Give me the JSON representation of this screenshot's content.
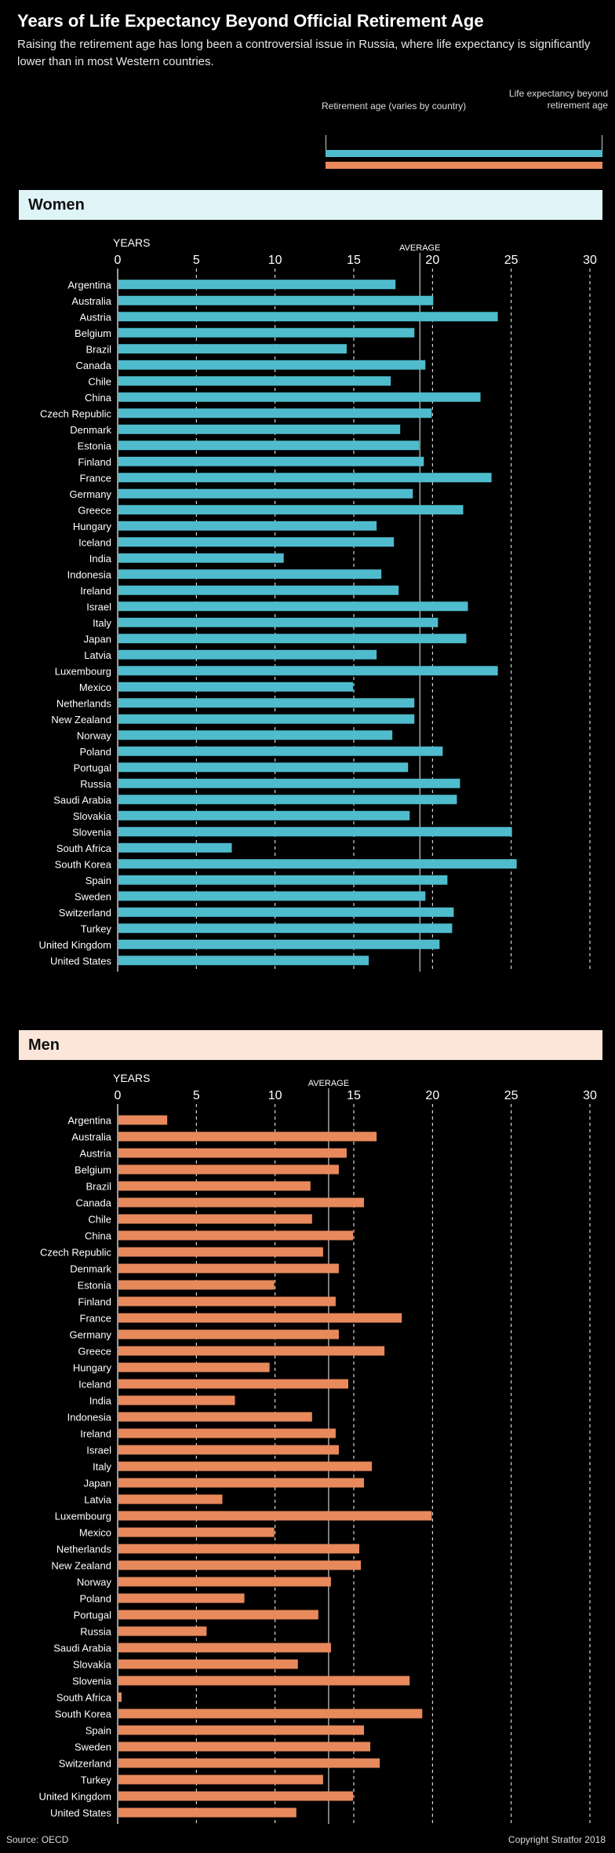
{
  "header": {
    "title": "Years of Life Expectancy Beyond Official Retirement Age",
    "subtitle": "Raising the retirement age has long been a controversial issue in Russia, where life expectancy is significantly lower than in most Western countries."
  },
  "legend": {
    "left_label": "Retirement age (varies by country)",
    "right_label": "Life expectancy beyond retirement age"
  },
  "colors": {
    "women": "#4fbccd",
    "men": "#e8895c",
    "women_header_bg": "#dff4f7",
    "men_header_bg": "#fbe6d9"
  },
  "footer": {
    "source": "Source: OECD",
    "copyright": "Copyright Stratfor 2018"
  },
  "chart_data": [
    {
      "type": "bar",
      "orientation": "horizontal",
      "title": "Women",
      "xlabel": "YEARS",
      "xlim": [
        0,
        30
      ],
      "xticks": [
        0,
        5,
        10,
        15,
        20,
        25,
        30
      ],
      "grid": true,
      "average": 19.2,
      "average_label": "AVERAGE",
      "categories": [
        "Argentina",
        "Australia",
        "Austria",
        "Belgium",
        "Brazil",
        "Canada",
        "Chile",
        "China",
        "Czech Republic",
        "Denmark",
        "Estonia",
        "Finland",
        "France",
        "Germany",
        "Greece",
        "Hungary",
        "Iceland",
        "India",
        "Indonesia",
        "Ireland",
        "Israel",
        "Italy",
        "Japan",
        "Latvia",
        "Luxembourg",
        "Mexico",
        "Netherlands",
        "New Zealand",
        "Norway",
        "Poland",
        "Portugal",
        "Russia",
        "Saudi Arabia",
        "Slovakia",
        "Slovenia",
        "South Africa",
        "South Korea",
        "Spain",
        "Sweden",
        "Switzerland",
        "Turkey",
        "United Kingdom",
        "United States"
      ],
      "values": [
        17.6,
        20.0,
        24.1,
        18.8,
        14.5,
        19.5,
        17.3,
        23.0,
        19.9,
        17.9,
        19.1,
        19.4,
        23.7,
        18.7,
        21.9,
        16.4,
        17.5,
        10.5,
        16.7,
        17.8,
        22.2,
        20.3,
        22.1,
        16.4,
        24.1,
        14.9,
        18.8,
        18.8,
        17.4,
        20.6,
        18.4,
        21.7,
        21.5,
        18.5,
        25.0,
        7.2,
        25.3,
        20.9,
        19.5,
        21.3,
        21.2,
        20.4,
        15.9
      ]
    },
    {
      "type": "bar",
      "orientation": "horizontal",
      "title": "Men",
      "xlabel": "YEARS",
      "xlim": [
        0,
        30
      ],
      "xticks": [
        0,
        5,
        10,
        15,
        20,
        25,
        30
      ],
      "grid": true,
      "average": 13.4,
      "average_label": "AVERAGE",
      "categories": [
        "Argentina",
        "Australia",
        "Austria",
        "Belgium",
        "Brazil",
        "Canada",
        "Chile",
        "China",
        "Czech Republic",
        "Denmark",
        "Estonia",
        "Finland",
        "France",
        "Germany",
        "Greece",
        "Hungary",
        "Iceland",
        "India",
        "Indonesia",
        "Ireland",
        "Israel",
        "Italy",
        "Japan",
        "Latvia",
        "Luxembourg",
        "Mexico",
        "Netherlands",
        "New Zealand",
        "Norway",
        "Poland",
        "Portugal",
        "Russia",
        "Saudi Arabia",
        "Slovakia",
        "Slovenia",
        "South Africa",
        "South Korea",
        "Spain",
        "Sweden",
        "Switzerland",
        "Turkey",
        "United Kingdom",
        "United States"
      ],
      "values": [
        3.1,
        16.4,
        14.5,
        14.0,
        12.2,
        15.6,
        12.3,
        14.9,
        13.0,
        14.0,
        9.9,
        13.8,
        18.0,
        14.0,
        16.9,
        9.6,
        14.6,
        7.4,
        12.3,
        13.8,
        14.0,
        16.1,
        15.6,
        6.6,
        19.9,
        9.9,
        15.3,
        15.4,
        13.5,
        8.0,
        12.7,
        5.6,
        13.5,
        11.4,
        18.5,
        0.2,
        19.3,
        15.6,
        16.0,
        16.6,
        13.0,
        14.9,
        11.3
      ]
    }
  ]
}
